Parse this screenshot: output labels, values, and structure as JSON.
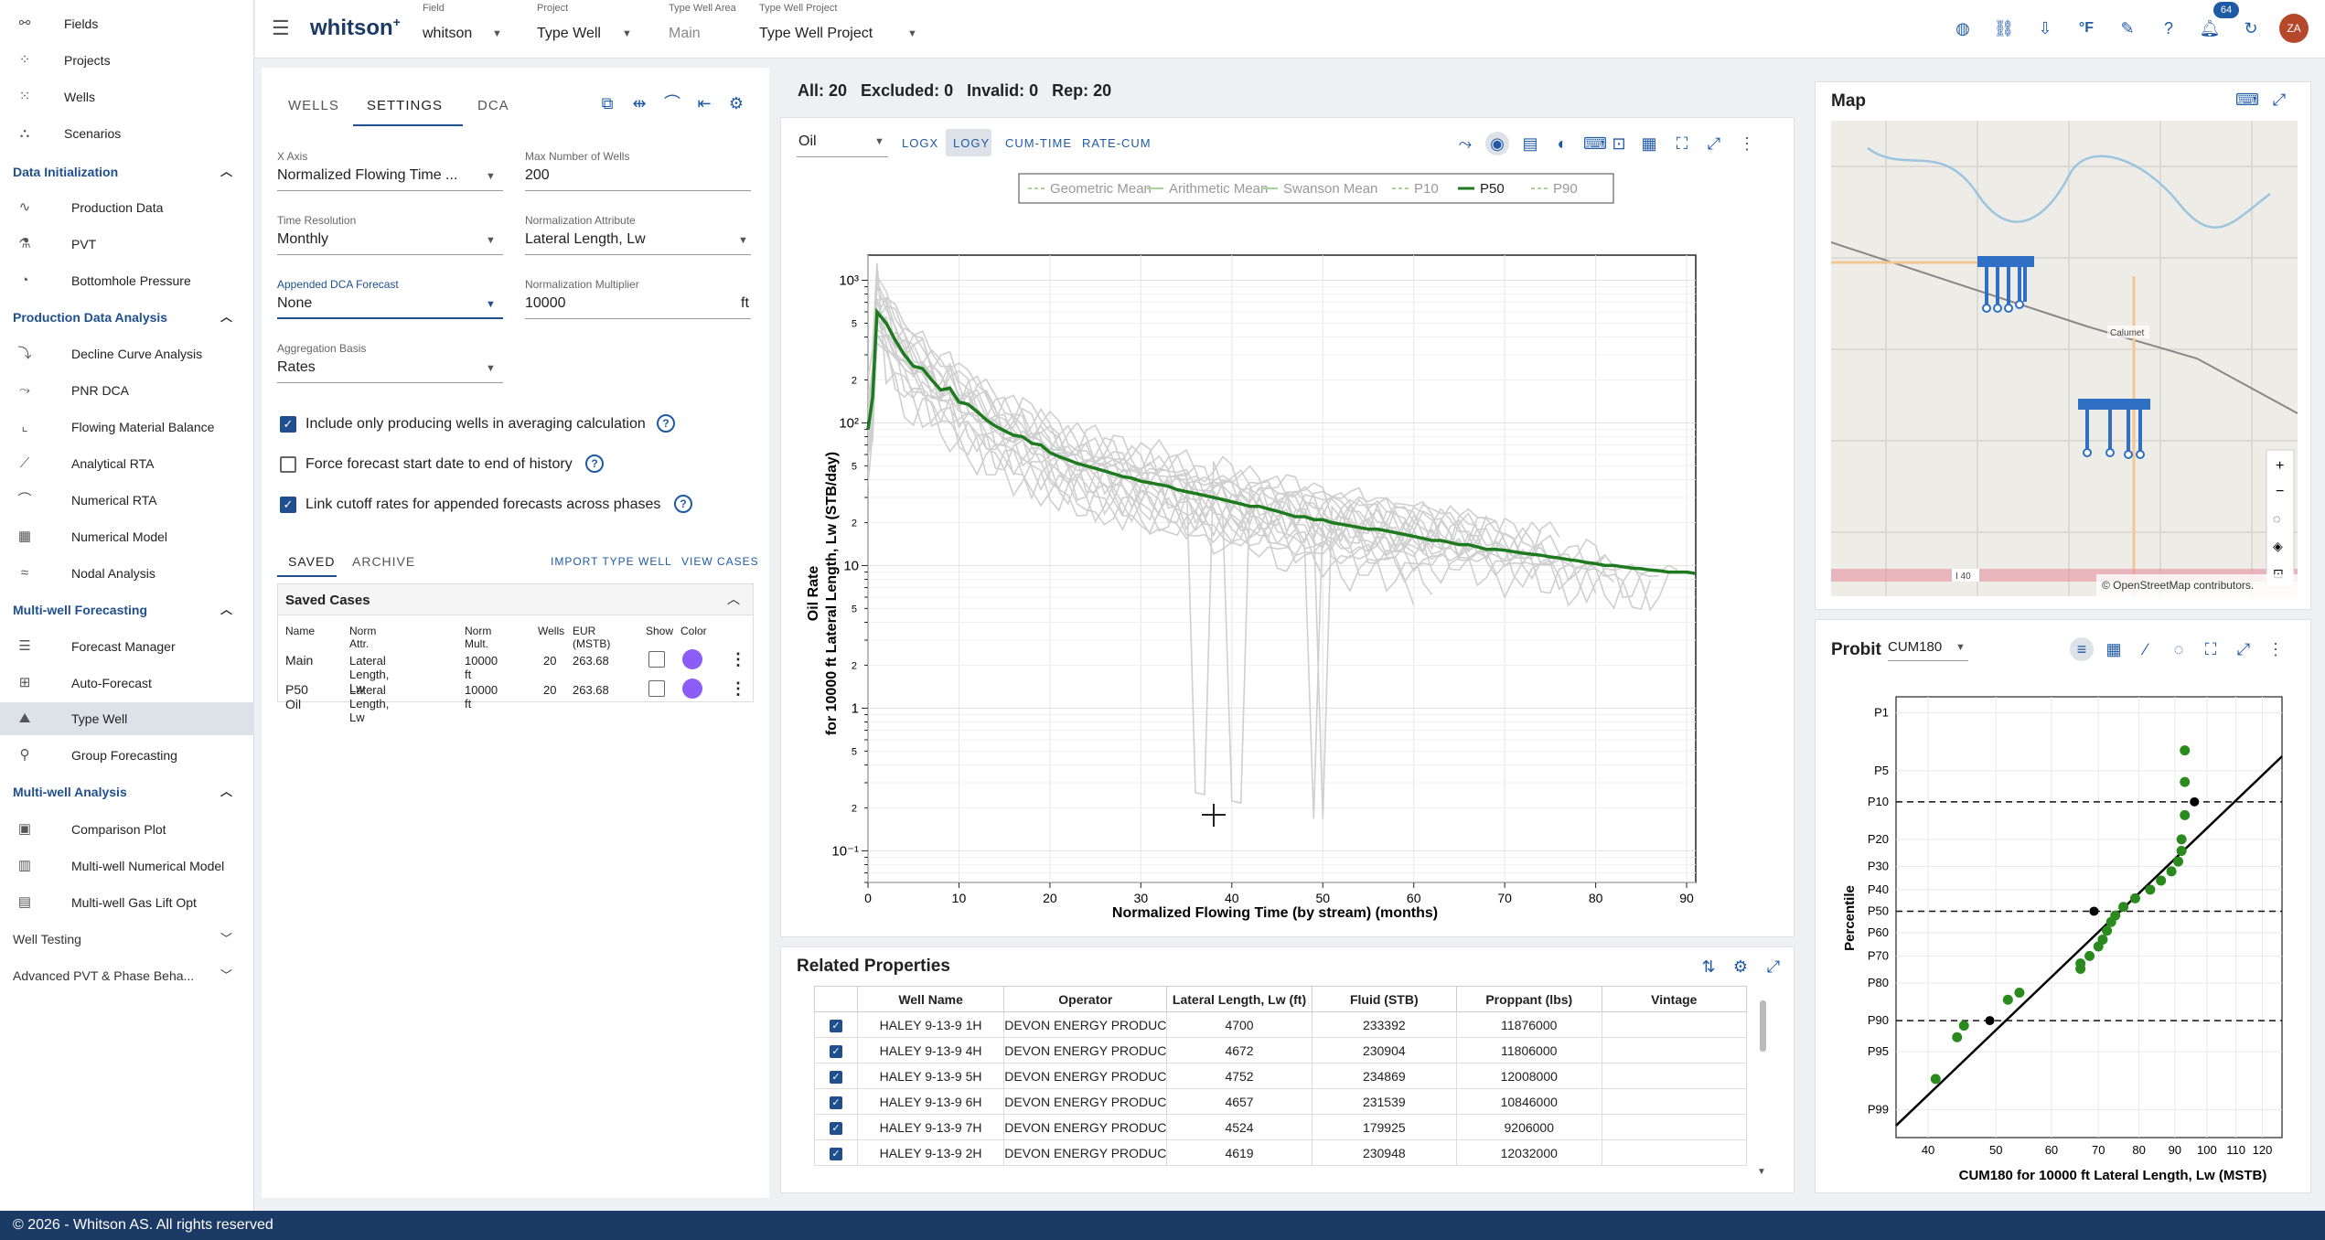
{
  "sidebar": {
    "top_items": [
      {
        "label": "Fields",
        "icon": "fields-icon"
      },
      {
        "label": "Projects",
        "icon": "projects-icon"
      },
      {
        "label": "Wells",
        "icon": "wells-icon"
      },
      {
        "label": "Scenarios",
        "icon": "scenarios-icon"
      }
    ],
    "sections": {
      "data_init": "Data Initialization",
      "pda": "Production Data Analysis",
      "mwf": "Multi-well Forecasting",
      "mwa": "Multi-well Analysis",
      "wt": "Well Testing",
      "apvt": "Advanced PVT & Phase Beha..."
    },
    "data_init_items": [
      "Production Data",
      "PVT",
      "Bottomhole Pressure"
    ],
    "pda_items": [
      "Decline Curve Analysis",
      "PNR DCA",
      "Flowing Material Balance",
      "Analytical RTA",
      "Numerical RTA",
      "Numerical Model",
      "Nodal Analysis"
    ],
    "mwf_items": [
      "Forecast Manager",
      "Auto-Forecast",
      "Type Well",
      "Group Forecasting"
    ],
    "mwa_items": [
      "Comparison Plot",
      "Multi-well Numerical Model",
      "Multi-well Gas Lift Opt"
    ]
  },
  "topbar": {
    "logo": "whitson",
    "logo_sup": "+",
    "field_label": "Field",
    "field_value": "whitson",
    "project_label": "Project",
    "project_value": "Type Well",
    "area_label": "Type Well Area",
    "area_value": "Main",
    "twp_label": "Type Well Project",
    "twp_value": "Type Well Project",
    "notif_count": "64",
    "avatar": "ZA"
  },
  "settings": {
    "tabs": [
      "WELLS",
      "SETTINGS",
      "DCA"
    ],
    "xaxis_label": "X Axis",
    "xaxis_value": "Normalized Flowing Time ...",
    "maxwells_label": "Max Number of Wells",
    "maxwells_value": "200",
    "timeres_label": "Time Resolution",
    "timeres_value": "Monthly",
    "normattr_label": "Normalization Attribute",
    "normattr_value": "Lateral Length, Lw",
    "appdca_label": "Appended DCA Forecast",
    "appdca_value": "None",
    "normmult_label": "Normalization Multiplier",
    "normmult_value": "10000",
    "normmult_unit": "ft",
    "agg_label": "Aggregation Basis",
    "agg_value": "Rates",
    "chk1": "Include only producing wells in averaging calculation",
    "chk2": "Force forecast start date to end of history",
    "chk3": "Link cutoff rates for appended forecasts across phases",
    "sub_tabs": [
      "SAVED",
      "ARCHIVE"
    ],
    "import_btn": "IMPORT TYPE WELL",
    "view_btn": "VIEW CASES",
    "saved_title": "Saved Cases",
    "saved_headers": [
      "Name",
      "Norm Attr.",
      "Norm Mult.",
      "Wells",
      "EUR (MSTB)",
      "Show",
      "Color"
    ],
    "saved_rows": [
      {
        "name": "Main",
        "attr": "Lateral Length, Lw",
        "mult": "10000 ft",
        "wells": "20",
        "eur": "263.68"
      },
      {
        "name": "P50 Oil",
        "attr": "Lateral Length, Lw",
        "mult": "10000 ft",
        "wells": "20",
        "eur": "263.68"
      }
    ],
    "swatch_color": "#8b5cf6"
  },
  "summary": {
    "all": "All: 20",
    "excluded": "Excluded: 0",
    "invalid": "Invalid: 0",
    "rep": "Rep: 20"
  },
  "plot_toolbar": {
    "phase": "Oil",
    "buttons": [
      "LOGX",
      "LOGY",
      "CUM-TIME",
      "RATE-CUM"
    ]
  },
  "chart_data": {
    "type": "line",
    "xlabel": "Normalized Flowing Time (by stream) (months)",
    "ylabel_line1": "Oil Rate",
    "ylabel_line2": "for 10000 ft Lateral Length, Lw (STB/day)",
    "xlim": [
      0,
      91
    ],
    "ylim": [
      0.06,
      1500
    ],
    "yscale": "log",
    "x_ticks": [
      "0",
      "10",
      "20",
      "30",
      "40",
      "50",
      "60",
      "70",
      "80",
      "90"
    ],
    "y_ticks_major": [
      "10³",
      "10²",
      "10",
      "1",
      "10⁻¹"
    ],
    "legend": [
      "Geometric Mean",
      "Arithmetic Mean",
      "Swanson Mean",
      "P10",
      "P50",
      "P90"
    ],
    "p50_color": "#1e7a1e",
    "p50": [
      [
        0,
        90
      ],
      [
        0.5,
        150
      ],
      [
        1,
        600
      ],
      [
        2,
        500
      ],
      [
        3,
        380
      ],
      [
        4,
        300
      ],
      [
        5,
        250
      ],
      [
        6,
        240
      ],
      [
        7,
        200
      ],
      [
        8,
        170
      ],
      [
        9,
        175
      ],
      [
        10,
        140
      ],
      [
        11,
        135
      ],
      [
        12,
        120
      ],
      [
        13,
        105
      ],
      [
        14,
        95
      ],
      [
        15,
        88
      ],
      [
        16,
        82
      ],
      [
        17,
        80
      ],
      [
        18,
        72
      ],
      [
        19,
        70
      ],
      [
        20,
        62
      ],
      [
        21,
        58
      ],
      [
        22,
        55
      ],
      [
        23,
        52
      ],
      [
        24,
        50
      ],
      [
        25,
        48
      ],
      [
        26,
        46
      ],
      [
        27,
        44
      ],
      [
        28,
        42
      ],
      [
        29,
        41
      ],
      [
        30,
        39
      ],
      [
        31,
        38
      ],
      [
        32,
        37
      ],
      [
        33,
        36
      ],
      [
        34,
        34
      ],
      [
        35,
        33
      ],
      [
        36,
        32
      ],
      [
        37,
        31
      ],
      [
        38,
        30
      ],
      [
        39,
        29
      ],
      [
        40,
        28
      ],
      [
        41,
        27
      ],
      [
        42,
        26
      ],
      [
        43,
        26
      ],
      [
        44,
        25
      ],
      [
        45,
        24
      ],
      [
        46,
        23
      ],
      [
        47,
        22
      ],
      [
        48,
        22
      ],
      [
        49,
        21
      ],
      [
        50,
        21
      ],
      [
        51,
        20
      ],
      [
        52,
        19.5
      ],
      [
        53,
        19
      ],
      [
        54,
        18.5
      ],
      [
        55,
        18
      ],
      [
        56,
        18
      ],
      [
        57,
        17.5
      ],
      [
        58,
        17
      ],
      [
        59,
        16.5
      ],
      [
        60,
        16
      ],
      [
        61,
        15.5
      ],
      [
        62,
        15
      ],
      [
        63,
        15
      ],
      [
        64,
        14.5
      ],
      [
        65,
        14
      ],
      [
        66,
        14
      ],
      [
        67,
        13.5
      ],
      [
        68,
        13
      ],
      [
        69,
        13
      ],
      [
        70,
        12.8
      ],
      [
        71,
        12.5
      ],
      [
        72,
        12.2
      ],
      [
        73,
        12
      ],
      [
        74,
        11.8
      ],
      [
        75,
        11.5
      ],
      [
        76,
        11.3
      ],
      [
        77,
        11
      ],
      [
        78,
        10.8
      ],
      [
        79,
        10.5
      ],
      [
        80,
        10.3
      ],
      [
        81,
        10
      ],
      [
        82,
        10
      ],
      [
        83,
        9.8
      ],
      [
        84,
        9.6
      ],
      [
        85,
        9.5
      ],
      [
        86,
        9.3
      ],
      [
        87,
        9.2
      ],
      [
        88,
        9
      ],
      [
        89,
        9
      ],
      [
        90,
        9
      ],
      [
        91,
        8.8
      ]
    ]
  },
  "related": {
    "title": "Related Properties",
    "headers": [
      "Well Name",
      "Operator",
      "Lateral Length, Lw (ft)",
      "Fluid (STB)",
      "Proppant (lbs)",
      "Vintage"
    ],
    "rows": [
      [
        "HALEY 9-13-9 1H",
        "DEVON ENERGY PRODUC",
        "4700",
        "233392",
        "11876000",
        ""
      ],
      [
        "HALEY 9-13-9 4H",
        "DEVON ENERGY PRODUC",
        "4672",
        "230904",
        "11806000",
        ""
      ],
      [
        "HALEY 9-13-9 5H",
        "DEVON ENERGY PRODUC",
        "4752",
        "234869",
        "12008000",
        ""
      ],
      [
        "HALEY 9-13-9 6H",
        "DEVON ENERGY PRODUC",
        "4657",
        "231539",
        "10846000",
        ""
      ],
      [
        "HALEY 9-13-9 7H",
        "DEVON ENERGY PRODUC",
        "4524",
        "179925",
        "9206000",
        ""
      ],
      [
        "HALEY 9-13-9 2H",
        "DEVON ENERGY PRODUC",
        "4619",
        "230948",
        "12032000",
        ""
      ]
    ]
  },
  "map": {
    "title": "Map",
    "town": "Calumet",
    "road": "I 40",
    "attribution": "© OpenStreetMap contributors."
  },
  "probit": {
    "title": "Probit",
    "metric": "CUM180",
    "xlabel": "CUM180 for 10000 ft Lateral Length, Lw (MSTB)",
    "ylabel": "Percentile",
    "y_ticks": [
      "P1",
      "P5",
      "P10",
      "P20",
      "P30",
      "P40",
      "P50",
      "P60",
      "P70",
      "P80",
      "P90",
      "P95",
      "P99"
    ],
    "x_ticks": [
      "40",
      "50",
      "60",
      "70",
      "80",
      "90",
      "100",
      "110",
      "120"
    ]
  },
  "footer": "© 2026 - Whitson AS. All rights reserved"
}
